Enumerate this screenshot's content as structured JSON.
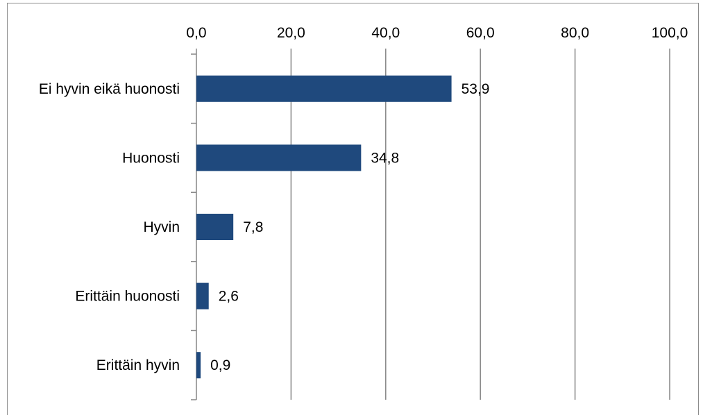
{
  "chart_data": {
    "type": "bar",
    "orientation": "horizontal",
    "categories": [
      "Ei hyvin eikä huonosti",
      "Huonosti",
      "Hyvin",
      "Erittäin huonosti",
      "Erittäin hyvin"
    ],
    "values": [
      53.9,
      34.8,
      7.8,
      2.6,
      0.9
    ],
    "value_labels": [
      "53,9",
      "34,8",
      "7,8",
      "2,6",
      "0,9"
    ],
    "x_ticks": [
      0,
      20,
      40,
      60,
      80,
      100
    ],
    "x_tick_labels": [
      "0,0",
      "20,0",
      "40,0",
      "60,0",
      "80,0",
      "100,0"
    ],
    "xlim": [
      0,
      100
    ],
    "x_axis_position": "top",
    "grid": true,
    "legend": "none",
    "bar_color": "#1f497d",
    "grid_color": "#868686"
  }
}
